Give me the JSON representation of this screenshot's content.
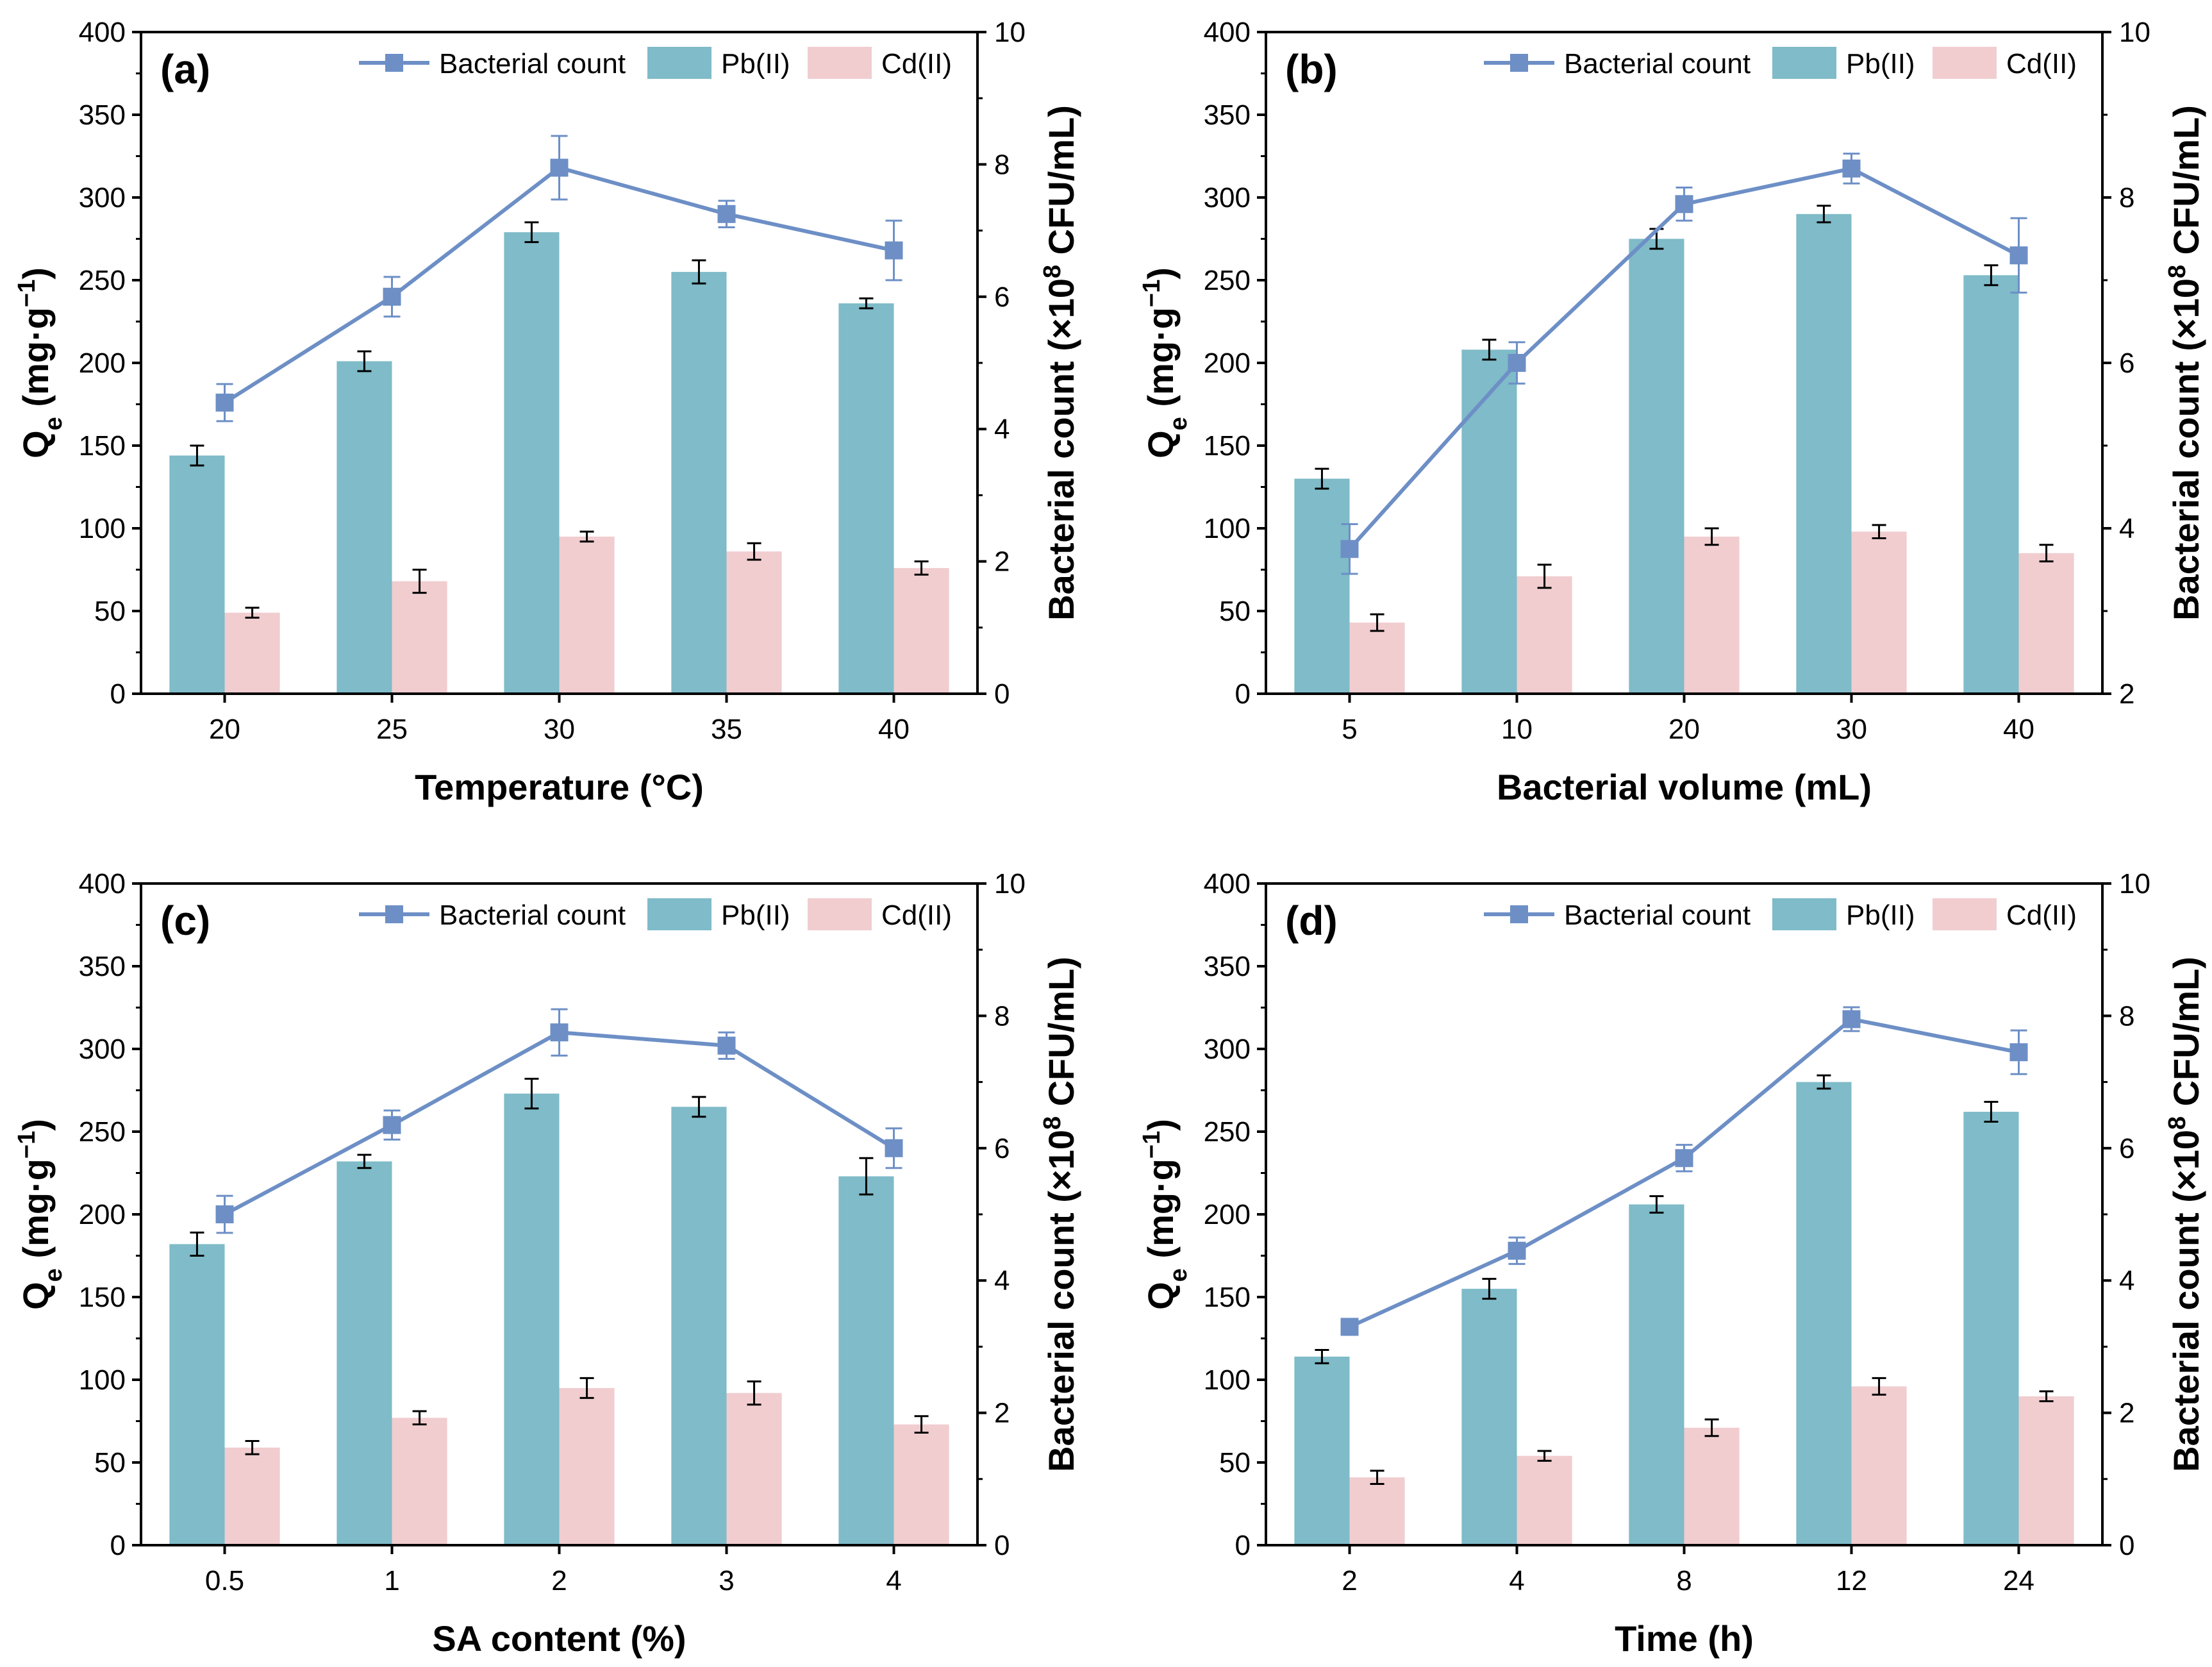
{
  "colors": {
    "pb_bar": "#7fbbc8",
    "cd_bar": "#f1cdd0",
    "line": "#6d8fc6",
    "axis": "#000000"
  },
  "legend": {
    "line_label": "Bacterial count",
    "pb_label": "Pb(II)",
    "cd_label": "Cd(II)"
  },
  "chart_data": [
    {
      "type": "bar+line",
      "panel": "(a)",
      "xlabel": "Temperature (°C)",
      "categories": [
        "20",
        "25",
        "30",
        "35",
        "40"
      ],
      "ylabel_left": "Qe (mg·g−1)",
      "ylabel_right": "Bacterial count (×108 CFU/mL)",
      "ylim_left": [
        0,
        400
      ],
      "yticks_left": [
        "0",
        "50",
        "100",
        "150",
        "200",
        "250",
        "300",
        "350",
        "400"
      ],
      "ylim_right": [
        0,
        10
      ],
      "yticks_right": [
        "0",
        "2",
        "4",
        "6",
        "8",
        "10"
      ],
      "series": [
        {
          "name": "Pb(II)",
          "kind": "bar",
          "axis": "left",
          "values": [
            144,
            201,
            279,
            255,
            236
          ],
          "errors": [
            6,
            6,
            6,
            7,
            3
          ]
        },
        {
          "name": "Cd(II)",
          "kind": "bar",
          "axis": "left",
          "values": [
            49,
            68,
            95,
            86,
            76
          ],
          "errors": [
            3,
            7,
            3,
            5,
            4
          ]
        },
        {
          "name": "Bacterial count",
          "kind": "line",
          "axis": "right",
          "values": [
            4.4,
            6.0,
            7.95,
            7.25,
            6.7
          ],
          "errors": [
            0.28,
            0.3,
            0.48,
            0.2,
            0.45
          ]
        }
      ]
    },
    {
      "type": "bar+line",
      "panel": "(b)",
      "xlabel": "Bacterial volume (mL)",
      "categories": [
        "5",
        "10",
        "20",
        "30",
        "40"
      ],
      "ylabel_left": "Qe (mg·g−1)",
      "ylabel_right": "Bacterial count (×108 CFU/mL)",
      "ylim_left": [
        0,
        400
      ],
      "yticks_left": [
        "0",
        "50",
        "100",
        "150",
        "200",
        "250",
        "300",
        "350",
        "400"
      ],
      "ylim_right": [
        2,
        10
      ],
      "yticks_right": [
        "2",
        "4",
        "6",
        "8",
        "10"
      ],
      "series": [
        {
          "name": "Pb(II)",
          "kind": "bar",
          "axis": "left",
          "values": [
            130,
            208,
            275,
            290,
            253
          ],
          "errors": [
            6,
            6,
            6,
            5,
            6
          ]
        },
        {
          "name": "Cd(II)",
          "kind": "bar",
          "axis": "left",
          "values": [
            43,
            71,
            95,
            98,
            85
          ],
          "errors": [
            5,
            7,
            5,
            4,
            5
          ]
        },
        {
          "name": "Bacterial count",
          "kind": "line",
          "axis": "right",
          "values": [
            3.75,
            6.0,
            7.92,
            8.35,
            7.3
          ],
          "errors": [
            0.3,
            0.25,
            0.2,
            0.18,
            0.45
          ]
        }
      ]
    },
    {
      "type": "bar+line",
      "panel": "(c)",
      "xlabel": "SA content (%)",
      "categories": [
        "0.5",
        "1",
        "2",
        "3",
        "4"
      ],
      "ylabel_left": "Qe (mg·g−1)",
      "ylabel_right": "Bacterial count (×108 CFU/mL)",
      "ylim_left": [
        0,
        400
      ],
      "yticks_left": [
        "0",
        "50",
        "100",
        "150",
        "200",
        "250",
        "300",
        "350",
        "400"
      ],
      "ylim_right": [
        0,
        10
      ],
      "yticks_right": [
        "0",
        "2",
        "4",
        "6",
        "8",
        "10"
      ],
      "series": [
        {
          "name": "Pb(II)",
          "kind": "bar",
          "axis": "left",
          "values": [
            182,
            232,
            273,
            265,
            223
          ],
          "errors": [
            7,
            4,
            9,
            6,
            11
          ]
        },
        {
          "name": "Cd(II)",
          "kind": "bar",
          "axis": "left",
          "values": [
            59,
            77,
            95,
            92,
            73
          ],
          "errors": [
            4,
            4,
            6,
            7,
            5
          ]
        },
        {
          "name": "Bacterial count",
          "kind": "line",
          "axis": "right",
          "values": [
            5.0,
            6.35,
            7.75,
            7.55,
            6.0
          ],
          "errors": [
            0.28,
            0.22,
            0.35,
            0.2,
            0.3
          ]
        }
      ]
    },
    {
      "type": "bar+line",
      "panel": "(d)",
      "xlabel": "Time (h)",
      "categories": [
        "2",
        "4",
        "8",
        "12",
        "24"
      ],
      "ylabel_left": "Qe (mg·g−1)",
      "ylabel_right": "Bacterial count (×108 CFU/mL)",
      "ylim_left": [
        0,
        400
      ],
      "yticks_left": [
        "0",
        "50",
        "100",
        "150",
        "200",
        "250",
        "300",
        "350",
        "400"
      ],
      "ylim_right": [
        0,
        10
      ],
      "yticks_right": [
        "0",
        "2",
        "4",
        "6",
        "8",
        "10"
      ],
      "series": [
        {
          "name": "Pb(II)",
          "kind": "bar",
          "axis": "left",
          "values": [
            114,
            155,
            206,
            280,
            262
          ],
          "errors": [
            4,
            6,
            5,
            4,
            6
          ]
        },
        {
          "name": "Cd(II)",
          "kind": "bar",
          "axis": "left",
          "values": [
            41,
            54,
            71,
            96,
            90
          ],
          "errors": [
            4,
            3,
            5,
            5,
            3
          ]
        },
        {
          "name": "Bacterial count",
          "kind": "line",
          "axis": "right",
          "values": [
            3.3,
            4.45,
            5.85,
            7.95,
            7.45
          ],
          "errors": [
            0.12,
            0.2,
            0.2,
            0.18,
            0.33
          ]
        }
      ]
    }
  ]
}
